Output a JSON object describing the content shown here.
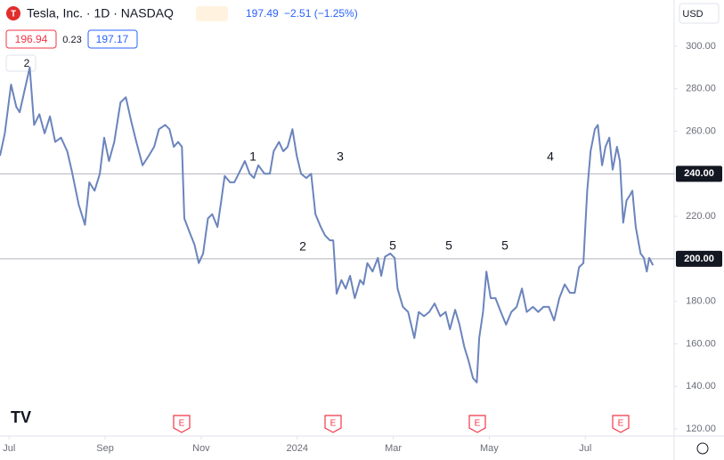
{
  "header": {
    "title": "Tesla, Inc. · 1D · NASDAQ",
    "price": "197.49",
    "change": "−2.51 (−1.25%)",
    "bid": "196.94",
    "spread": "0.23",
    "ask": "197.17",
    "indicators": "2",
    "currency": "USD"
  },
  "chart_data": {
    "type": "line",
    "x": [
      -0.19,
      -0.09,
      0.04,
      0.15,
      0.22,
      0.33,
      0.43,
      0.52,
      0.63,
      0.74,
      0.85,
      0.96,
      1.08,
      1.21,
      1.3,
      1.45,
      1.58,
      1.67,
      1.78,
      1.89,
      1.98,
      2.08,
      2.19,
      2.32,
      2.43,
      2.54,
      2.65,
      2.78,
      2.91,
      3.02,
      3.12,
      3.25,
      3.34,
      3.43,
      3.52,
      3.6,
      3.65,
      3.75,
      3.86,
      3.95,
      4.04,
      4.14,
      4.23,
      4.34,
      4.41,
      4.49,
      4.6,
      4.69,
      4.78,
      4.91,
      5.01,
      5.1,
      5.19,
      5.32,
      5.43,
      5.51,
      5.62,
      5.71,
      5.8,
      5.9,
      5.99,
      6.08,
      6.19,
      6.29,
      6.38,
      6.49,
      6.58,
      6.68,
      6.75,
      6.82,
      6.92,
      7.01,
      7.1,
      7.2,
      7.31,
      7.38,
      7.46,
      7.57,
      7.68,
      7.75,
      7.83,
      7.94,
      8.03,
      8.09,
      8.2,
      8.31,
      8.44,
      8.53,
      8.64,
      8.75,
      8.86,
      8.98,
      9.09,
      9.18,
      9.29,
      9.38,
      9.48,
      9.57,
      9.66,
      9.74,
      9.79,
      9.87,
      9.94,
      10.03,
      10.13,
      10.24,
      10.35,
      10.46,
      10.57,
      10.68,
      10.78,
      10.91,
      11.02,
      11.13,
      11.24,
      11.35,
      11.46,
      11.57,
      11.68,
      11.78,
      11.87,
      11.96,
      12.04,
      12.11,
      12.2,
      12.26,
      12.35,
      12.42,
      12.5,
      12.57,
      12.66,
      12.72,
      12.79,
      12.86,
      12.92,
      12.98,
      13.05,
      13.15,
      13.22,
      13.28,
      13.33,
      13.41
    ],
    "series": [
      {
        "name": "TSLA",
        "color": "#6b84bd",
        "values": [
          248.5,
          259,
          282,
          271.5,
          269,
          280,
          290,
          263,
          268,
          259,
          267,
          255,
          257,
          250.6,
          242,
          225.5,
          216,
          236,
          232,
          240,
          257,
          246,
          255,
          273.6,
          276,
          265,
          255,
          244,
          248.5,
          252.7,
          261,
          263,
          261,
          252.7,
          255,
          252.7,
          219,
          213,
          206.7,
          198,
          202.5,
          219,
          221,
          215,
          226,
          239,
          236,
          236,
          240,
          246,
          240,
          238,
          244,
          240,
          240,
          250.6,
          255,
          250.6,
          252.7,
          261,
          248.5,
          240,
          238,
          240,
          221,
          215,
          211,
          208.7,
          208.7,
          183.6,
          190,
          186,
          192,
          181.5,
          190,
          188,
          198,
          194,
          200.4,
          192,
          201,
          202.5,
          200.4,
          186,
          177.4,
          175,
          162.7,
          175,
          173,
          175,
          179,
          173,
          175,
          166.9,
          176,
          169,
          158.5,
          152,
          143.9,
          141.8,
          162.7,
          175,
          194,
          181.5,
          181.5,
          175,
          169,
          175,
          177.4,
          186,
          175,
          177.4,
          175,
          177.4,
          177.4,
          171,
          181.5,
          188,
          184,
          184,
          196,
          198,
          232,
          250.6,
          261,
          263,
          244,
          252.7,
          257,
          242,
          252.7,
          246,
          217,
          227.5,
          229.6,
          232,
          215,
          202.5,
          200.4,
          194,
          200.4,
          197
        ]
      }
    ],
    "xlim": [
      -0.19,
      13.85
    ],
    "xticks": [
      {
        "value": 0,
        "label": "Jul"
      },
      {
        "value": 2,
        "label": "Sep"
      },
      {
        "value": 4,
        "label": "Nov"
      },
      {
        "value": 6,
        "label": "2024"
      },
      {
        "value": 8,
        "label": "Mar"
      },
      {
        "value": 10,
        "label": "May"
      },
      {
        "value": 12,
        "label": "Jul"
      }
    ],
    "ylim": [
      120,
      300
    ],
    "yticks": [
      {
        "value": 120,
        "label": "120.00"
      },
      {
        "value": 140,
        "label": "140.00"
      },
      {
        "value": 160,
        "label": "160.00"
      },
      {
        "value": 180,
        "label": "180.00"
      },
      {
        "value": 200,
        "label": "200.00"
      },
      {
        "value": 220,
        "label": "220.00"
      },
      {
        "value": 240,
        "label": "240.00"
      },
      {
        "value": 260,
        "label": "260.00"
      },
      {
        "value": 280,
        "label": "280.00"
      },
      {
        "value": 300,
        "label": "300.00"
      }
    ],
    "levels": [
      {
        "value": 240,
        "label": "240.00"
      },
      {
        "value": 200,
        "label": "200.00"
      }
    ],
    "annotations": [
      "1",
      "2",
      "3",
      "4",
      "5",
      "5",
      "5"
    ],
    "events": [
      "E",
      "E",
      "E",
      "E"
    ]
  }
}
